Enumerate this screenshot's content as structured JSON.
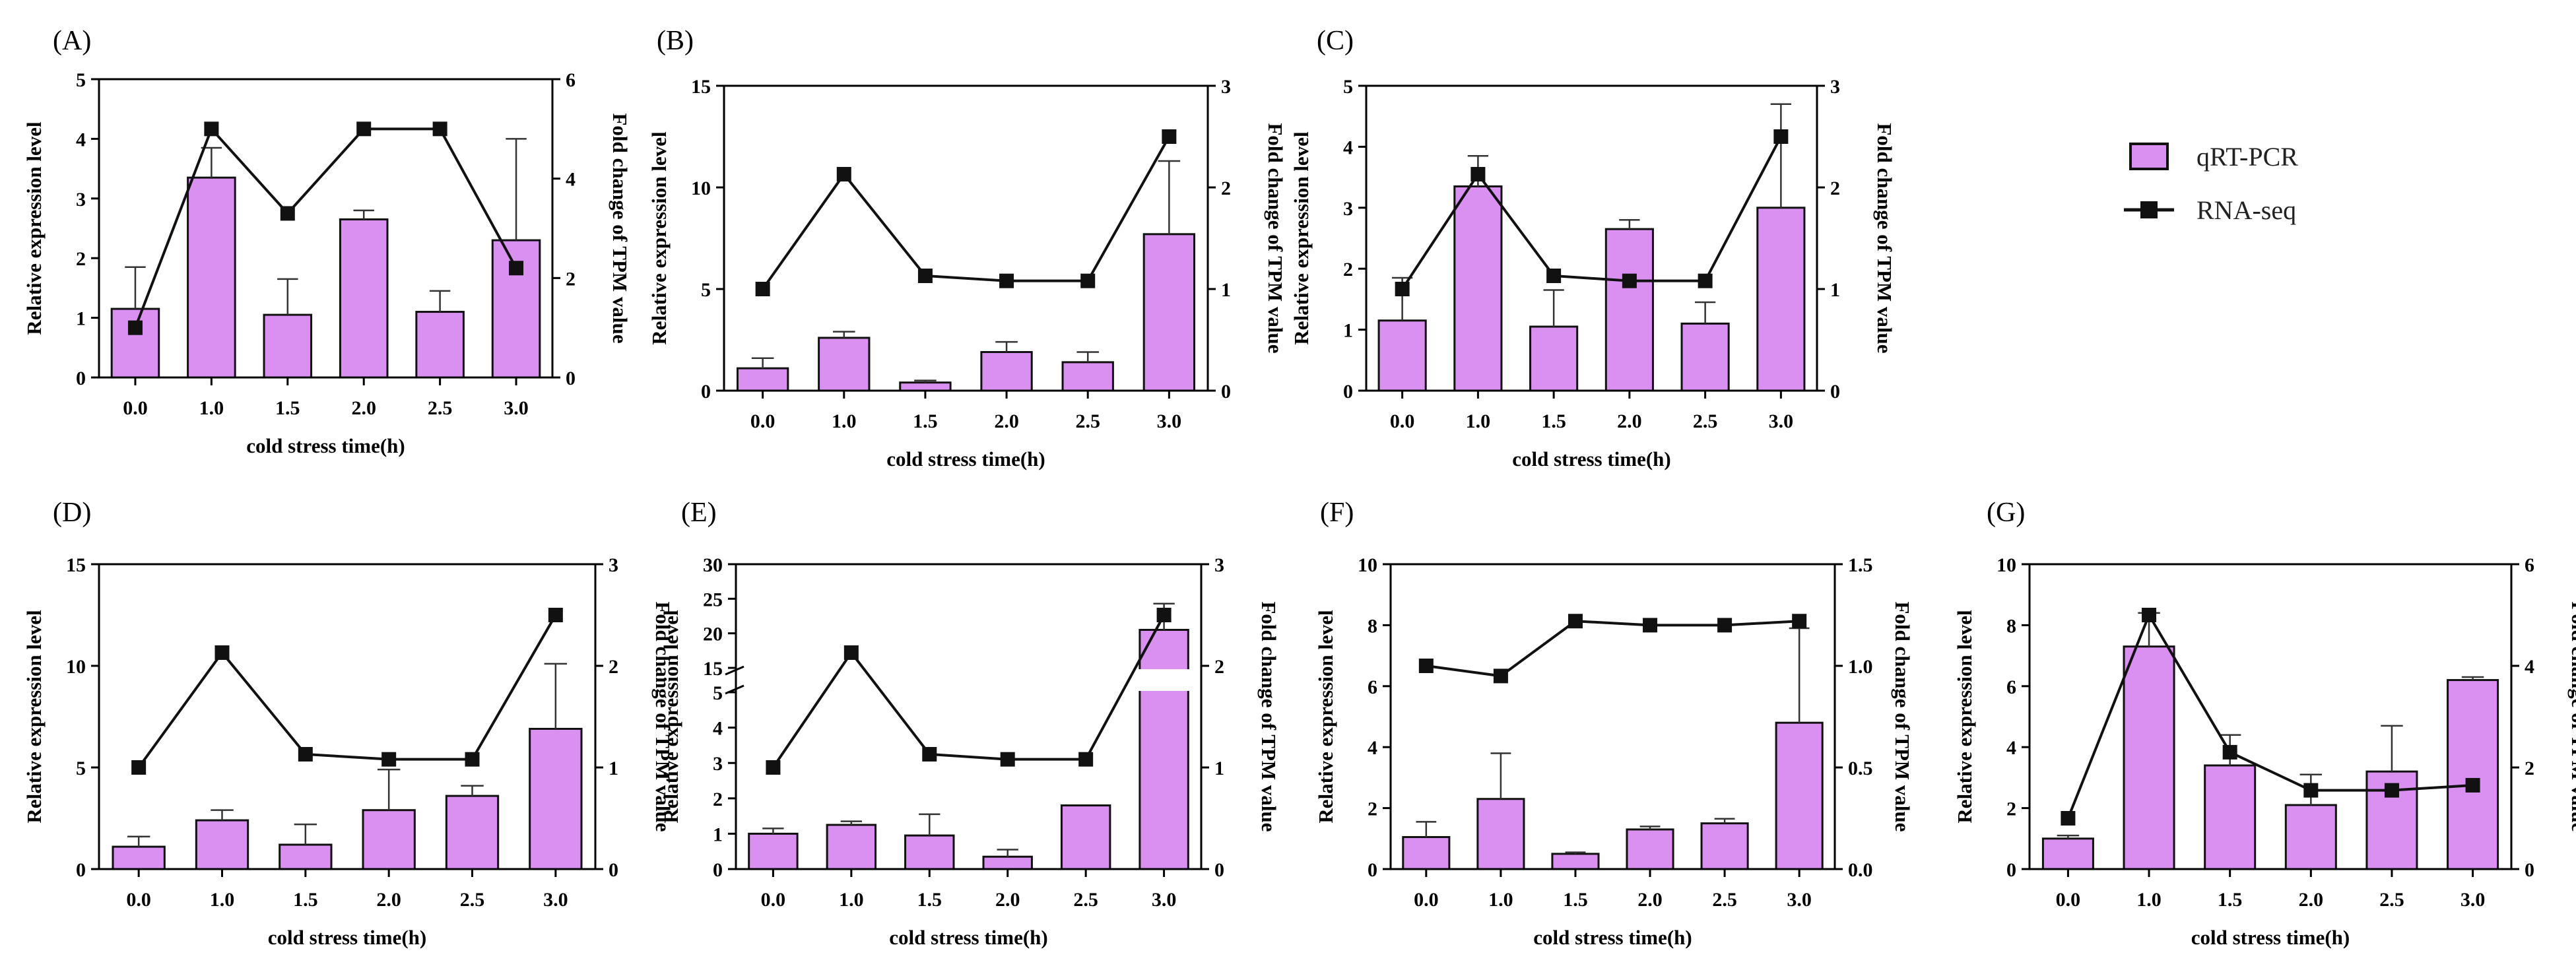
{
  "colors": {
    "bar": "#d990f0",
    "bar_stroke": "#111111",
    "line": "#111111",
    "marker": "#111111"
  },
  "legend": {
    "bar_label": "qRT-PCR",
    "line_label": "RNA-seq"
  },
  "chart_data": [
    {
      "panel_label": "(A)",
      "type": "bar",
      "categories": [
        "0.0",
        "1.0",
        "1.5",
        "2.0",
        "2.5",
        "3.0"
      ],
      "xlabel": "cold stress time(h)",
      "ylabel": "Relative expression level",
      "y2label": "Fold change of TPM value",
      "ylim": [
        0,
        5
      ],
      "yticks": [
        0,
        1,
        2,
        3,
        4,
        5
      ],
      "y2lim": [
        0,
        6
      ],
      "y2ticks": [
        0,
        2,
        4,
        6
      ],
      "series": [
        {
          "name": "qRT-PCR",
          "kind": "bar",
          "axis": "left",
          "values": [
            1.15,
            3.35,
            1.05,
            2.65,
            1.1,
            2.3
          ],
          "errors": [
            0.7,
            0.5,
            0.6,
            0.15,
            0.35,
            1.7
          ]
        },
        {
          "name": "RNA-seq",
          "kind": "line",
          "axis": "right",
          "values": [
            1.0,
            5.0,
            3.3,
            5.0,
            5.0,
            2.2
          ]
        }
      ]
    },
    {
      "panel_label": "(B)",
      "type": "bar",
      "categories": [
        "0.0",
        "1.0",
        "1.5",
        "2.0",
        "2.5",
        "3.0"
      ],
      "xlabel": "cold stress time(h)",
      "ylabel": "Relative expression level",
      "y2label": "Fold change of TPM value",
      "ylim": [
        0,
        15
      ],
      "yticks": [
        0,
        5,
        10,
        15
      ],
      "y2lim": [
        0,
        3
      ],
      "y2ticks": [
        0,
        1,
        2,
        3
      ],
      "series": [
        {
          "name": "qRT-PCR",
          "kind": "bar",
          "axis": "left",
          "values": [
            1.1,
            2.6,
            0.4,
            1.9,
            1.4,
            7.7
          ],
          "errors": [
            0.5,
            0.3,
            0.1,
            0.5,
            0.5,
            3.6
          ]
        },
        {
          "name": "RNA-seq",
          "kind": "line",
          "axis": "right",
          "values": [
            1.0,
            2.13,
            1.13,
            1.08,
            1.08,
            2.5
          ]
        }
      ]
    },
    {
      "panel_label": "(C)",
      "type": "bar",
      "categories": [
        "0.0",
        "1.0",
        "1.5",
        "2.0",
        "2.5",
        "3.0"
      ],
      "xlabel": "cold stress time(h)",
      "ylabel": "Relative expression level",
      "y2label": "Fold change of TPM value",
      "ylim": [
        0,
        5
      ],
      "yticks": [
        0,
        1,
        2,
        3,
        4,
        5
      ],
      "y2lim": [
        0,
        3
      ],
      "y2ticks": [
        0,
        1,
        2,
        3
      ],
      "series": [
        {
          "name": "qRT-PCR",
          "kind": "bar",
          "axis": "left",
          "values": [
            1.15,
            3.35,
            1.05,
            2.65,
            1.1,
            3.0
          ],
          "errors": [
            0.7,
            0.5,
            0.6,
            0.15,
            0.35,
            1.7
          ]
        },
        {
          "name": "RNA-seq",
          "kind": "line",
          "axis": "right",
          "values": [
            1.0,
            2.13,
            1.13,
            1.08,
            1.08,
            2.5
          ]
        }
      ]
    },
    {
      "panel_label": "(D)",
      "type": "bar",
      "categories": [
        "0.0",
        "1.0",
        "1.5",
        "2.0",
        "2.5",
        "3.0"
      ],
      "xlabel": "cold stress time(h)",
      "ylabel": "Relative expression level",
      "y2label": "Fold change of TPM value",
      "ylim": [
        0,
        15
      ],
      "yticks": [
        0,
        5,
        10,
        15
      ],
      "y2lim": [
        0,
        3
      ],
      "y2ticks": [
        0,
        1,
        2,
        3
      ],
      "series": [
        {
          "name": "qRT-PCR",
          "kind": "bar",
          "axis": "left",
          "values": [
            1.1,
            2.4,
            1.2,
            2.9,
            3.6,
            6.9
          ],
          "errors": [
            0.5,
            0.5,
            1.0,
            2.0,
            0.5,
            3.2
          ]
        },
        {
          "name": "RNA-seq",
          "kind": "line",
          "axis": "right",
          "values": [
            1.0,
            2.13,
            1.13,
            1.08,
            1.08,
            2.5
          ]
        }
      ]
    },
    {
      "panel_label": "(E)",
      "type": "bar",
      "categories": [
        "0.0",
        "1.0",
        "1.5",
        "2.0",
        "2.5",
        "3.0"
      ],
      "xlabel": "cold stress time(h)",
      "ylabel": "Relative expression level",
      "y2label": "Fold change of TPM value",
      "ylim": [
        0,
        30
      ],
      "yticks": [
        0,
        1,
        2,
        3,
        4,
        5,
        15,
        20,
        25,
        30
      ],
      "y_break": [
        5,
        15
      ],
      "y2lim": [
        0,
        3
      ],
      "y2ticks": [
        0,
        1,
        2,
        3
      ],
      "series": [
        {
          "name": "qRT-PCR",
          "kind": "bar",
          "axis": "left",
          "values": [
            1.0,
            1.25,
            0.95,
            0.35,
            1.8,
            20.5
          ],
          "errors": [
            0.15,
            0.1,
            0.6,
            0.2,
            0,
            3.8
          ]
        },
        {
          "name": "RNA-seq",
          "kind": "line",
          "axis": "right",
          "values": [
            1.0,
            2.13,
            1.13,
            1.08,
            1.08,
            2.5
          ]
        }
      ]
    },
    {
      "panel_label": "(F)",
      "type": "bar",
      "categories": [
        "0.0",
        "1.0",
        "1.5",
        "2.0",
        "2.5",
        "3.0"
      ],
      "xlabel": "cold stress time(h)",
      "ylabel": "Relative expression level",
      "y2label": "Fold change of TPM value",
      "ylim": [
        0,
        10
      ],
      "yticks": [
        0,
        2,
        4,
        6,
        8,
        10
      ],
      "y2lim": [
        0,
        1.5
      ],
      "y2ticks": [
        0,
        0.5,
        1.0,
        1.5
      ],
      "y2ticklabels": [
        "0.0",
        "0.5",
        "1.0",
        "1.5"
      ],
      "series": [
        {
          "name": "qRT-PCR",
          "kind": "bar",
          "axis": "left",
          "values": [
            1.05,
            2.3,
            0.5,
            1.3,
            1.5,
            4.8
          ],
          "errors": [
            0.5,
            1.5,
            0.05,
            0.1,
            0.15,
            3.1
          ]
        },
        {
          "name": "RNA-seq",
          "kind": "line",
          "axis": "right",
          "values": [
            1.0,
            0.95,
            1.22,
            1.2,
            1.2,
            1.22
          ]
        }
      ]
    },
    {
      "panel_label": "(G)",
      "type": "bar",
      "categories": [
        "0.0",
        "1.0",
        "1.5",
        "2.0",
        "2.5",
        "3.0"
      ],
      "xlabel": "cold stress time(h)",
      "ylabel": "Relative expression level",
      "y2label": "Fold change of TPM value",
      "ylim": [
        0,
        10
      ],
      "yticks": [
        0,
        2,
        4,
        6,
        8,
        10
      ],
      "y2lim": [
        0,
        6
      ],
      "y2ticks": [
        0,
        2,
        4,
        6
      ],
      "series": [
        {
          "name": "qRT-PCR",
          "kind": "bar",
          "axis": "left",
          "values": [
            1.0,
            7.3,
            3.4,
            2.1,
            3.2,
            6.2
          ],
          "errors": [
            0.1,
            1.1,
            1.0,
            1.0,
            1.5,
            0.1
          ]
        },
        {
          "name": "RNA-seq",
          "kind": "line",
          "axis": "right",
          "values": [
            1.0,
            5.0,
            2.3,
            1.55,
            1.55,
            1.65
          ]
        }
      ]
    }
  ]
}
